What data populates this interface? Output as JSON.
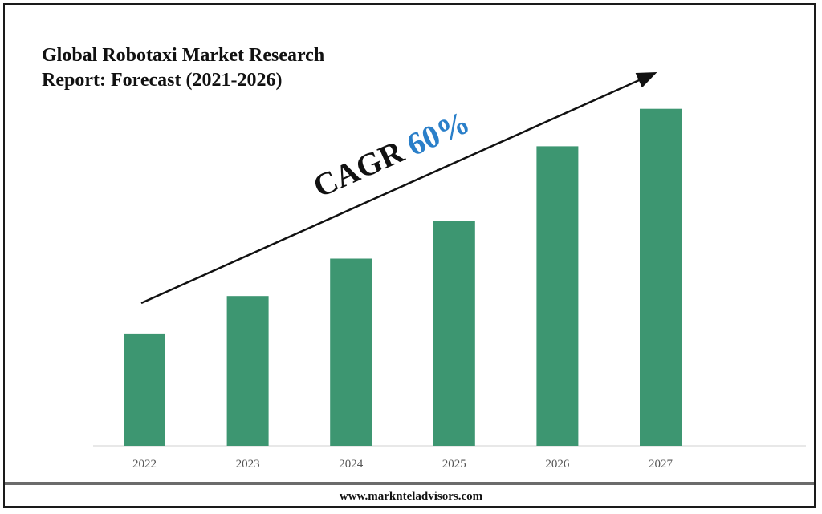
{
  "title": {
    "line1": "Global Robotaxi Market Research",
    "line2": "Report: Forecast (2021-2026)"
  },
  "annotation": {
    "label": "CAGR",
    "value": "60%"
  },
  "footer": {
    "url": "www.marknteladvisors.com"
  },
  "colors": {
    "bar": "#3d9671",
    "accent": "#2a7fc9",
    "text": "#111111"
  },
  "chart_data": {
    "type": "bar",
    "categories": [
      "2022",
      "2023",
      "2024",
      "2025",
      "2026",
      "2027"
    ],
    "values": [
      30,
      40,
      50,
      60,
      80,
      90
    ],
    "title": "Global Robotaxi Market Research Report: Forecast (2021-2026)",
    "xlabel": "",
    "ylabel": "",
    "ylim": [
      0,
      100
    ],
    "grid": false,
    "legend": "none",
    "trend_arrow": true
  }
}
